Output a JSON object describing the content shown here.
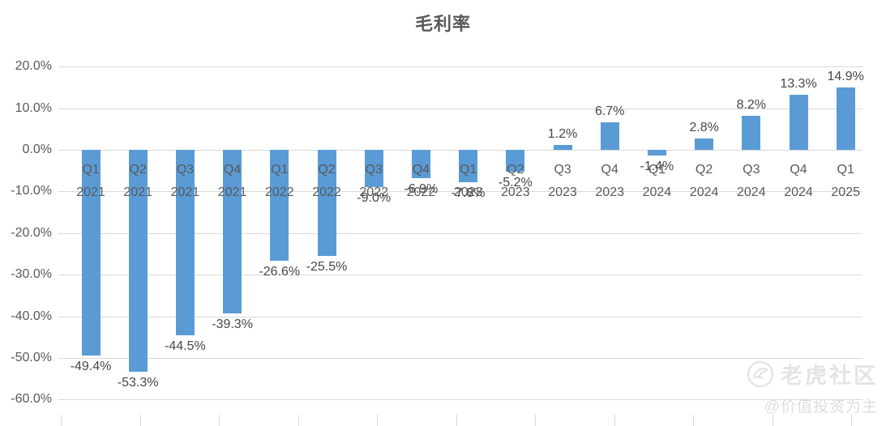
{
  "chart_data": {
    "type": "bar",
    "title": "毛利率",
    "categories": [
      {
        "quarter": "Q1",
        "year": "2021"
      },
      {
        "quarter": "Q2",
        "year": "2021"
      },
      {
        "quarter": "Q3",
        "year": "2021"
      },
      {
        "quarter": "Q4",
        "year": "2021"
      },
      {
        "quarter": "Q1",
        "year": "2022"
      },
      {
        "quarter": "Q2",
        "year": "2022"
      },
      {
        "quarter": "Q3",
        "year": "2022"
      },
      {
        "quarter": "Q4",
        "year": "2022"
      },
      {
        "quarter": "Q1",
        "year": "2023"
      },
      {
        "quarter": "Q2",
        "year": "2023"
      },
      {
        "quarter": "Q3",
        "year": "2023"
      },
      {
        "quarter": "Q4",
        "year": "2023"
      },
      {
        "quarter": "Q1",
        "year": "2024"
      },
      {
        "quarter": "Q2",
        "year": "2024"
      },
      {
        "quarter": "Q3",
        "year": "2024"
      },
      {
        "quarter": "Q4",
        "year": "2024"
      },
      {
        "quarter": "Q1",
        "year": "2025"
      }
    ],
    "values": [
      -49.4,
      -53.3,
      -44.5,
      -39.3,
      -26.6,
      -25.5,
      -9.0,
      -6.9,
      -7.8,
      -5.2,
      1.2,
      6.7,
      -1.4,
      2.8,
      8.2,
      13.3,
      14.9
    ],
    "value_labels": [
      "-49.4%",
      "-53.3%",
      "-44.5%",
      "-39.3%",
      "-26.6%",
      "-25.5%",
      "-9.0%",
      "-6.9%",
      "-7.8%",
      "-5.2%",
      "1.2%",
      "6.7%",
      "-1.4%",
      "2.8%",
      "8.2%",
      "13.3%",
      "14.9%"
    ],
    "xlabel": "",
    "ylabel": "",
    "ylim": [
      -60,
      20
    ],
    "ytick_step": 10,
    "ytick_labels": [
      "20.0%",
      "10.0%",
      "0.0%",
      "-10.0%",
      "-20.0%",
      "-30.0%",
      "-40.0%",
      "-50.0%",
      "-60.0%"
    ],
    "grid": true,
    "legend": "none",
    "bar_color": "#5b9bd5",
    "gridline_color": "#d9d9d9",
    "text_color": "#595959"
  },
  "watermark": {
    "icon": "tiger-logo-icon",
    "brand": "老虎社区",
    "handle": "@价值投资为主"
  }
}
